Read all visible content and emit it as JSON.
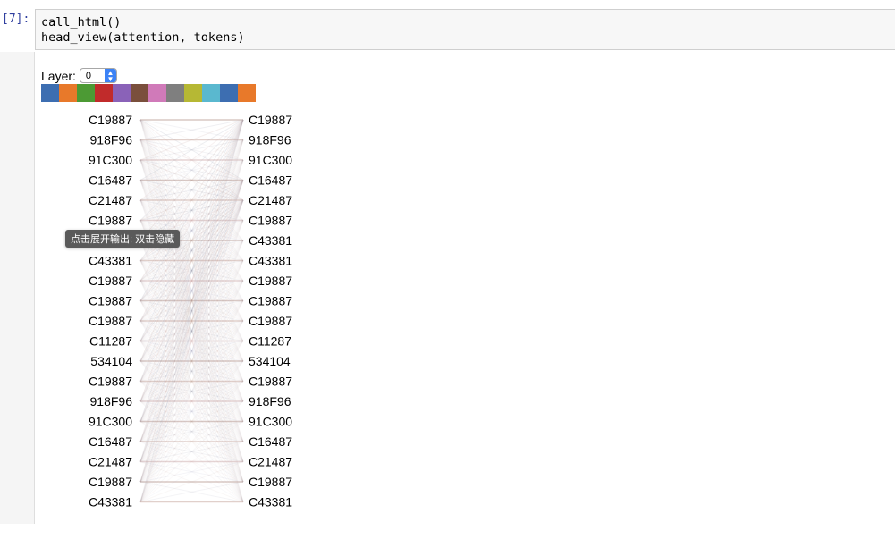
{
  "cell": {
    "prompt": "[7]:",
    "code_lines": [
      "call_html()",
      "head_view(attention, tokens)"
    ]
  },
  "output": {
    "layer_label": "Layer:",
    "layer_value": "0",
    "head_colors": [
      "#3d6eb1",
      "#e8792a",
      "#4c9a34",
      "#c12b2b",
      "#8a62b8",
      "#7a4f3c",
      "#d07ab9",
      "#7f7f7f",
      "#b6b834",
      "#5ab8cf",
      "#3d6eb1",
      "#e8792a"
    ],
    "tooltip": "点击展开输出; 双击隐藏",
    "left_tokens": [
      "C19887",
      "918F96",
      "91C300",
      "C16487",
      "C21487",
      "C19887",
      "C43381",
      "C43381",
      "C19887",
      "C19887",
      "C19887",
      "C11287",
      "534104",
      "C19887",
      "918F96",
      "91C300",
      "C16487",
      "C21487",
      "C19887",
      "C43381"
    ],
    "right_tokens": [
      "C19887",
      "918F96",
      "91C300",
      "C16487",
      "C21487",
      "C19887",
      "C43381",
      "C43381",
      "C19887",
      "C19887",
      "C19887",
      "C11287",
      "534104",
      "C19887",
      "918F96",
      "91C300",
      "C16487",
      "C21487",
      "C19887",
      "C43381"
    ]
  }
}
